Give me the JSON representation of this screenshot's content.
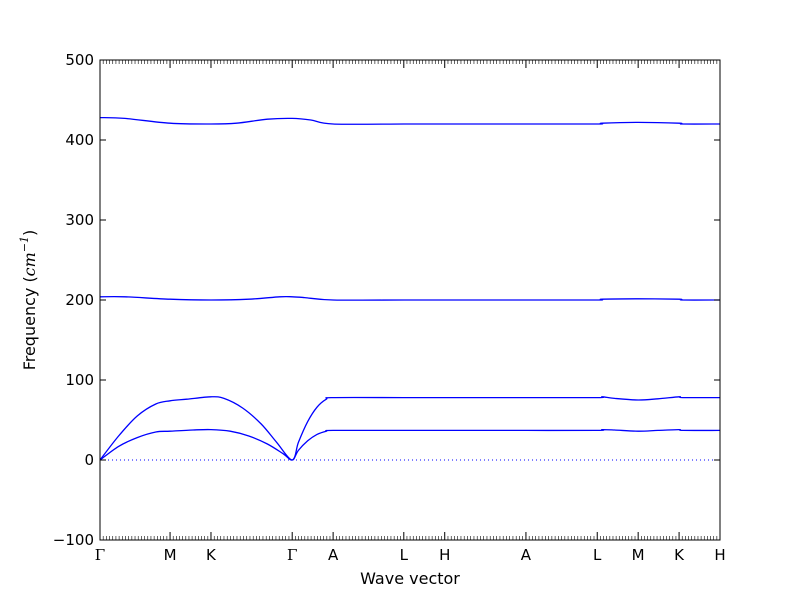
{
  "chart_data": {
    "type": "line",
    "title": "",
    "xlabel": "Wave vector",
    "ylabel_text": "Frequency (",
    "ylabel_unit": "cm",
    "ylabel_exp": "−1",
    "ylabel_close": ")",
    "ylim": [
      -100,
      500
    ],
    "yticks": [
      -100,
      0,
      100,
      200,
      300,
      400,
      500
    ],
    "xlim": [
      0,
      1
    ],
    "high_symmetry_points": [
      {
        "label": "Γ",
        "x": 0.0
      },
      {
        "label": "M",
        "x": 0.113
      },
      {
        "label": "K",
        "x": 0.179
      },
      {
        "label": "Γ",
        "x": 0.31
      },
      {
        "label": "A",
        "x": 0.376
      },
      {
        "label": "L",
        "x": 0.49
      },
      {
        "label": "H",
        "x": 0.556
      },
      {
        "label": "A",
        "x": 0.687
      },
      {
        "label": "L",
        "x": 0.802
      },
      {
        "label": "M",
        "x": 0.868
      },
      {
        "label": "K",
        "x": 0.934
      },
      {
        "label": "H",
        "x": 1.0
      }
    ],
    "zero_line": 0,
    "line_color": "#0000ff",
    "series": [
      {
        "values": [
          [
            0,
            0
          ],
          [
            0.03,
            17
          ],
          [
            0.06,
            28
          ],
          [
            0.09,
            35
          ],
          [
            0.113,
            36
          ],
          [
            0.15,
            37.5
          ],
          [
            0.179,
            38
          ],
          [
            0.21,
            36
          ],
          [
            0.24,
            30
          ],
          [
            0.27,
            20
          ],
          [
            0.295,
            8
          ],
          [
            0.31,
            0
          ],
          [
            0.32,
            12
          ],
          [
            0.335,
            24
          ],
          [
            0.35,
            32
          ],
          [
            0.365,
            36
          ],
          [
            0.376,
            37
          ],
          [
            0.49,
            37
          ],
          [
            0.556,
            37
          ],
          [
            0.687,
            37
          ],
          [
            0.802,
            37
          ],
          [
            0.81,
            38
          ],
          [
            0.83,
            37.5
          ],
          [
            0.868,
            36
          ],
          [
            0.9,
            37
          ],
          [
            0.934,
            38
          ],
          [
            0.94,
            37
          ],
          [
            1.0,
            37
          ]
        ]
      },
      {
        "values": [
          [
            0,
            0
          ],
          [
            0.03,
            30
          ],
          [
            0.06,
            55
          ],
          [
            0.09,
            70
          ],
          [
            0.113,
            74
          ],
          [
            0.14,
            76
          ],
          [
            0.179,
            79
          ],
          [
            0.2,
            77
          ],
          [
            0.23,
            65
          ],
          [
            0.26,
            45
          ],
          [
            0.285,
            22
          ],
          [
            0.31,
            0
          ],
          [
            0.32,
            22
          ],
          [
            0.335,
            48
          ],
          [
            0.35,
            66
          ],
          [
            0.365,
            76
          ],
          [
            0.376,
            78
          ],
          [
            0.49,
            78
          ],
          [
            0.556,
            78
          ],
          [
            0.687,
            78
          ],
          [
            0.802,
            78
          ],
          [
            0.81,
            79
          ],
          [
            0.83,
            77
          ],
          [
            0.868,
            75
          ],
          [
            0.9,
            76.5
          ],
          [
            0.934,
            79
          ],
          [
            0.94,
            78
          ],
          [
            1.0,
            78
          ]
        ]
      },
      {
        "values": [
          [
            0,
            204
          ],
          [
            0.04,
            204
          ],
          [
            0.113,
            201
          ],
          [
            0.179,
            200
          ],
          [
            0.24,
            201
          ],
          [
            0.29,
            204
          ],
          [
            0.31,
            204
          ],
          [
            0.33,
            203
          ],
          [
            0.376,
            200
          ],
          [
            0.49,
            200
          ],
          [
            0.556,
            200
          ],
          [
            0.687,
            200
          ],
          [
            0.802,
            200
          ],
          [
            0.81,
            201
          ],
          [
            0.868,
            201.5
          ],
          [
            0.934,
            201
          ],
          [
            0.94,
            200
          ],
          [
            1.0,
            200
          ]
        ]
      },
      {
        "values": [
          [
            0,
            428
          ],
          [
            0.04,
            427
          ],
          [
            0.113,
            421
          ],
          [
            0.179,
            420
          ],
          [
            0.22,
            421
          ],
          [
            0.27,
            426
          ],
          [
            0.31,
            427
          ],
          [
            0.34,
            425
          ],
          [
            0.376,
            420
          ],
          [
            0.49,
            420
          ],
          [
            0.556,
            420
          ],
          [
            0.687,
            420
          ],
          [
            0.802,
            420
          ],
          [
            0.81,
            421
          ],
          [
            0.868,
            422
          ],
          [
            0.934,
            421
          ],
          [
            0.94,
            420
          ],
          [
            1.0,
            420
          ]
        ]
      }
    ]
  }
}
